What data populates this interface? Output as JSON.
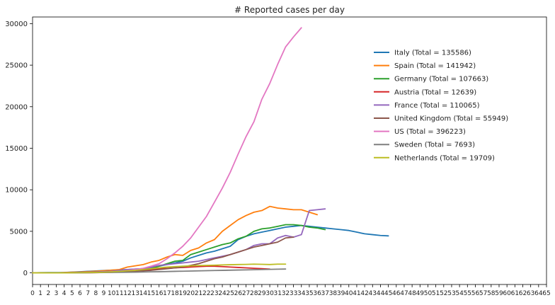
{
  "chart_data": {
    "type": "line",
    "title": "# Reported cases per day",
    "xlabel": "",
    "ylabel": "",
    "xlim": [
      0,
      65
    ],
    "ylim": [
      -1400,
      30800
    ],
    "yticks": [
      0,
      5000,
      10000,
      15000,
      20000,
      25000,
      30000
    ],
    "xticks": [
      0,
      1,
      2,
      3,
      4,
      5,
      6,
      7,
      8,
      9,
      10,
      11,
      12,
      13,
      14,
      15,
      16,
      17,
      18,
      19,
      20,
      21,
      22,
      23,
      24,
      25,
      26,
      27,
      28,
      29,
      30,
      31,
      32,
      33,
      34,
      35,
      36,
      37,
      38,
      39,
      40,
      41,
      42,
      43,
      44,
      45,
      46,
      47,
      48,
      49,
      50,
      51,
      52,
      53,
      54,
      55,
      56,
      57,
      58,
      59,
      60,
      61,
      62,
      63,
      64,
      65
    ],
    "grid": false,
    "legend_position": "upper-right",
    "series": [
      {
        "name": "Italy (Total  = 135586)",
        "color": "#1f77b4",
        "values": [
          0,
          20,
          30,
          40,
          50,
          90,
          130,
          180,
          230,
          280,
          320,
          360,
          400,
          450,
          500,
          600,
          800,
          1000,
          1200,
          1400,
          1800,
          2100,
          2400,
          2600,
          2900,
          3200,
          4000,
          4400,
          4700,
          4900,
          5100,
          5300,
          5500,
          5600,
          5700,
          5600,
          5500,
          5400,
          5300,
          5200,
          5100,
          4900,
          4700,
          4600,
          4500,
          4450
        ]
      },
      {
        "name": "Spain (Total  = 141942)",
        "color": "#ff7f0e",
        "values": [
          0,
          0,
          0,
          0,
          30,
          80,
          100,
          150,
          200,
          260,
          320,
          400,
          700,
          850,
          1000,
          1300,
          1500,
          1900,
          2200,
          2100,
          2700,
          3000,
          3600,
          4000,
          5000,
          5700,
          6400,
          6900,
          7300,
          7500,
          8000,
          7800,
          7700,
          7600,
          7600,
          7300,
          7000
        ]
      },
      {
        "name": "Germany (Total  = 107663)",
        "color": "#2ca02c",
        "values": [
          0,
          0,
          0,
          0,
          0,
          20,
          50,
          80,
          100,
          130,
          160,
          200,
          250,
          300,
          400,
          500,
          800,
          1100,
          1400,
          1500,
          2200,
          2500,
          2800,
          3100,
          3400,
          3600,
          4100,
          4400,
          5000,
          5300,
          5400,
          5600,
          5800,
          5800,
          5700,
          5500,
          5400,
          5200
        ]
      },
      {
        "name": "Austria (Total  = 12639)",
        "color": "#d62728",
        "values": [
          0,
          0,
          0,
          0,
          0,
          0,
          10,
          20,
          30,
          50,
          70,
          100,
          150,
          200,
          300,
          400,
          500,
          550,
          600,
          650,
          700,
          750,
          800,
          800,
          750,
          700,
          650,
          600,
          550,
          500,
          450
        ]
      },
      {
        "name": "France (Total  = 110065)",
        "color": "#9467bd",
        "values": [
          0,
          0,
          0,
          0,
          20,
          40,
          60,
          80,
          100,
          150,
          200,
          300,
          400,
          450,
          500,
          700,
          900,
          1000,
          1100,
          1200,
          1300,
          1400,
          1600,
          1800,
          2000,
          2200,
          2500,
          2800,
          3300,
          3500,
          3500,
          4200,
          4500,
          4300,
          4600,
          7500,
          7600,
          7700
        ]
      },
      {
        "name": "United Kingdom (Total  = 55949)",
        "color": "#8c564b",
        "values": [
          0,
          0,
          0,
          0,
          0,
          10,
          20,
          30,
          50,
          70,
          100,
          130,
          170,
          200,
          250,
          300,
          400,
          500,
          600,
          700,
          900,
          1100,
          1400,
          1700,
          1900,
          2200,
          2500,
          2800,
          3100,
          3300,
          3500,
          3700,
          4200,
          4300
        ]
      },
      {
        "name": "US (Total  = 396223)",
        "color": "#e377c2",
        "values": [
          0,
          0,
          0,
          0,
          0,
          0,
          10,
          20,
          50,
          80,
          120,
          180,
          280,
          400,
          550,
          800,
          1100,
          1700,
          2400,
          3200,
          4200,
          5500,
          6800,
          8500,
          10200,
          12100,
          14300,
          16400,
          18200,
          20900,
          22800,
          25100,
          27200,
          28400,
          29500
        ]
      },
      {
        "name": "Sweden (Total  = 7693)",
        "color": "#7f7f7f",
        "values": [
          0,
          0,
          0,
          0,
          0,
          0,
          10,
          20,
          30,
          40,
          50,
          60,
          70,
          80,
          100,
          120,
          140,
          160,
          180,
          200,
          220,
          240,
          260,
          280,
          300,
          320,
          340,
          360,
          380,
          400,
          420,
          440,
          460
        ]
      },
      {
        "name": "Netherlands (Total  = 19709)",
        "color": "#bcbd22",
        "values": [
          0,
          0,
          0,
          0,
          0,
          10,
          20,
          30,
          50,
          80,
          120,
          180,
          250,
          300,
          400,
          500,
          600,
          700,
          750,
          800,
          850,
          880,
          900,
          920,
          950,
          980,
          1000,
          1020,
          1050,
          1030,
          1000,
          1050,
          1050
        ]
      }
    ]
  }
}
